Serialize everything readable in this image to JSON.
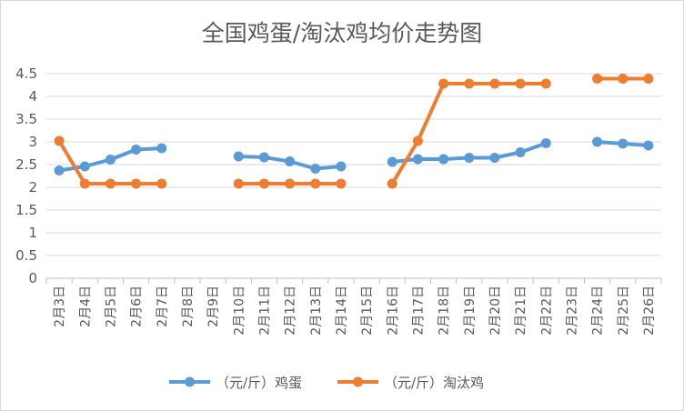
{
  "chart_data": {
    "type": "line",
    "title": "全国鸡蛋/淘汰鸡均价走势图",
    "xlabel": "",
    "ylabel": "",
    "categories": [
      "2月3日",
      "2月4日",
      "2月5日",
      "2月6日",
      "2月7日",
      "2月8日",
      "2月9日",
      "2月10日",
      "2月11日",
      "2月12日",
      "2月13日",
      "2月14日",
      "2月15日",
      "2月16日",
      "2月17日",
      "2月18日",
      "2月19日",
      "2月20日",
      "2月21日",
      "2月22日",
      "2月23日",
      "2月24日",
      "2月25日",
      "2月26日"
    ],
    "series": [
      {
        "name": "（元/斤）鸡蛋",
        "color": "#5b9bd5",
        "values": [
          2.37,
          2.46,
          2.61,
          2.83,
          2.86,
          null,
          null,
          2.68,
          2.66,
          2.57,
          2.41,
          2.46,
          null,
          2.56,
          2.62,
          2.62,
          2.65,
          2.65,
          2.77,
          2.97,
          null,
          3.0,
          2.96,
          2.92
        ]
      },
      {
        "name": "（元/斤）淘汰鸡",
        "color": "#ed7d31",
        "values": [
          3.02,
          2.08,
          2.08,
          2.08,
          2.08,
          null,
          null,
          2.08,
          2.08,
          2.08,
          2.08,
          2.08,
          null,
          2.08,
          3.02,
          4.28,
          4.28,
          4.28,
          4.28,
          4.28,
          null,
          4.39,
          4.39,
          4.39
        ]
      }
    ],
    "ylim": [
      0,
      4.5
    ],
    "yticks": [
      "0",
      "0.5",
      "1",
      "1.5",
      "2",
      "2.5",
      "3",
      "3.5",
      "4",
      "4.5"
    ],
    "grid": true,
    "legend_position": "bottom"
  }
}
